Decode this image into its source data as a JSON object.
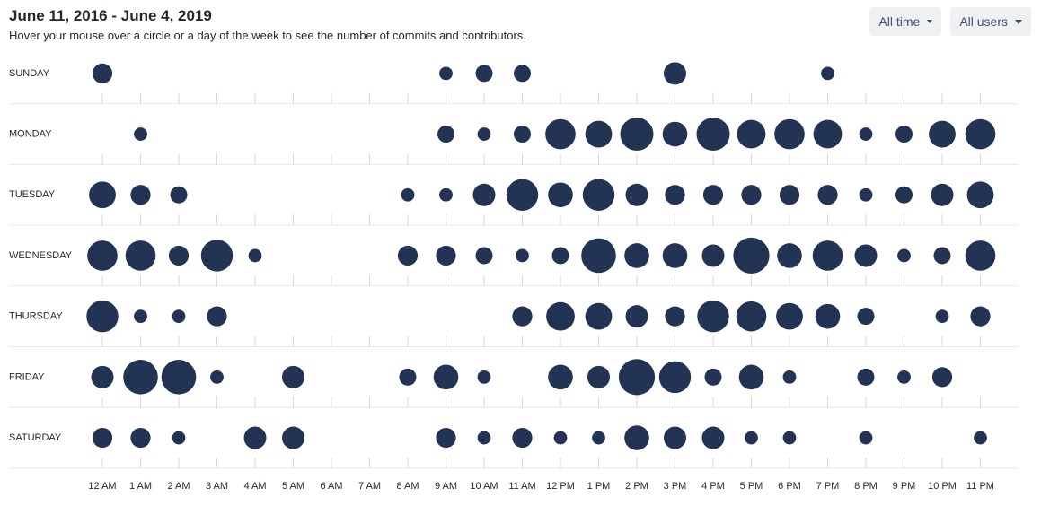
{
  "header": {
    "title": "June 11, 2016 - June 4, 2019",
    "subtitle": "Hover your mouse over a circle or a day of the week to see the number of commits and contributors."
  },
  "filters": {
    "time_label": "All time",
    "users_label": "All users"
  },
  "colors": {
    "dot": "#223354",
    "grid": "#e7e9ec",
    "tick": "#d4d7db"
  },
  "chart_data": {
    "type": "scatter",
    "title": "June 11, 2016 - June 4, 2019",
    "days": [
      "SUNDAY",
      "MONDAY",
      "TUESDAY",
      "WEDNESDAY",
      "THURSDAY",
      "FRIDAY",
      "SATURDAY"
    ],
    "hours": [
      "12 AM",
      "1 AM",
      "2 AM",
      "3 AM",
      "4 AM",
      "5 AM",
      "6 AM",
      "7 AM",
      "8 AM",
      "9 AM",
      "10 AM",
      "11 AM",
      "12 PM",
      "1 PM",
      "2 PM",
      "3 PM",
      "4 PM",
      "5 PM",
      "6 PM",
      "7 PM",
      "8 PM",
      "9 PM",
      "10 PM",
      "11 PM"
    ],
    "size_scale_max": 10,
    "values": [
      [
        3,
        0,
        0,
        0,
        0,
        0,
        0,
        0,
        0,
        1,
        2,
        2,
        0,
        0,
        0,
        4,
        0,
        0,
        0,
        1,
        0,
        0,
        0,
        0
      ],
      [
        0,
        1,
        0,
        0,
        0,
        0,
        0,
        0,
        0,
        2,
        1,
        2,
        8,
        6,
        10,
        5,
        10,
        7,
        8,
        7,
        1,
        2,
        6,
        8
      ],
      [
        6,
        3,
        2,
        0,
        0,
        0,
        0,
        0,
        1,
        1,
        4,
        9,
        5,
        9,
        4,
        3,
        3,
        3,
        3,
        3,
        1,
        2,
        4,
        6
      ],
      [
        8,
        8,
        3,
        9,
        1,
        0,
        0,
        0,
        3,
        3,
        2,
        1,
        2,
        11,
        5,
        5,
        4,
        12,
        5,
        8,
        4,
        1,
        2,
        8
      ],
      [
        9,
        1,
        1,
        3,
        0,
        0,
        0,
        0,
        0,
        0,
        0,
        3,
        7,
        6,
        4,
        3,
        9,
        8,
        6,
        5,
        2,
        0,
        1,
        3
      ],
      [
        4,
        11,
        11,
        1,
        0,
        4,
        0,
        0,
        2,
        5,
        1,
        0,
        5,
        4,
        12,
        9,
        2,
        5,
        1,
        0,
        2,
        1,
        3,
        0
      ],
      [
        3,
        3,
        1,
        0,
        4,
        4,
        0,
        0,
        0,
        3,
        1,
        3,
        1,
        1,
        5,
        4,
        4,
        1,
        1,
        0,
        1,
        0,
        0,
        1
      ]
    ]
  }
}
